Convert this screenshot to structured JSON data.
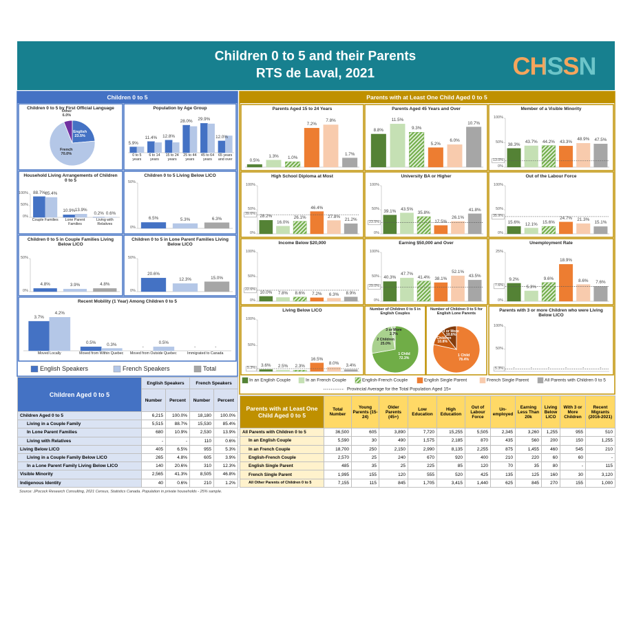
{
  "header": {
    "title_lines": [
      "Children 0 to 5 and their Parents",
      "RTS de Laval, 2021"
    ],
    "logo": "CHSSN"
  },
  "left_panel_title": "Children 0 to 5",
  "right_panel_title": "Parents with at Least One Child Aged 0 to 5",
  "children_legend": [
    {
      "name": "English Speakers",
      "color": "#4472c4"
    },
    {
      "name": "French Speakers",
      "color": "#b4c7e7"
    },
    {
      "name": "Total",
      "color": "#a6a6a6"
    }
  ],
  "parents_legend": {
    "items": [
      {
        "name": "In an English Couple",
        "color": "#548235"
      },
      {
        "name": "In an French Couple",
        "color": "#c5e0b4"
      },
      {
        "name": "English-French Couple",
        "color": "#70ad47",
        "hatch": true
      },
      {
        "name": "English Single Parent",
        "color": "#ed7d31"
      },
      {
        "name": "French Single Parent",
        "color": "#f8cbad"
      },
      {
        "name": "All Parents with Children 0 to 5",
        "color": "#a6a6a6"
      }
    ],
    "reference_line": "Provincial Average for the Total Population Aged 15+"
  },
  "chart_data": [
    {
      "type": "pie",
      "title": "Children 0 to 5 by First Official Language",
      "labels": [
        "English",
        "French",
        "Other"
      ],
      "values": [
        23.5,
        70.0,
        6.0
      ],
      "value_labels": [
        "23.5%",
        "70.0%",
        "6.0%"
      ],
      "colors": [
        "#4472c4",
        "#b4c7e7",
        "#7030a0"
      ]
    },
    {
      "type": "bar",
      "title": "Population by Age Group",
      "categories": [
        "0 to 5 years",
        "6 to 14 years",
        "15 to 24 years",
        "25 to 44 years",
        "45 to 64 years",
        "65 years and over"
      ],
      "series": [
        {
          "values": [
            5.9,
            11.4,
            12.8,
            28.0,
            29.9,
            12.0
          ],
          "value_labels": [
            "5.9%",
            "11.4%",
            "12.8%",
            "28.0%",
            "29.9%",
            "12.0%"
          ]
        },
        {
          "values": [
            6.0,
            10.3,
            10.4,
            26.7,
            29.4,
            17.2
          ]
        }
      ],
      "ylim": [
        0,
        35
      ]
    },
    {
      "type": "bar",
      "title": "Household Living Arrangements of Children 0 to 5",
      "categories": [
        "Couple Families",
        "Lone Parent Families",
        "Living with Relatives"
      ],
      "series": [
        {
          "values": [
            88.7,
            10.9,
            0.2
          ],
          "value_labels": [
            "88.7%",
            "10.9%",
            "0.2%"
          ]
        },
        {
          "values": [
            85.4,
            13.9,
            0.6
          ],
          "value_labels": [
            "85.4%",
            "13.9%",
            "0.6%"
          ]
        }
      ],
      "ylim": [
        0,
        100
      ],
      "yticks": [
        {
          "value": 0,
          "label": "0%"
        },
        {
          "value": 50,
          "label": "50%"
        },
        {
          "value": 100,
          "label": "100%"
        }
      ]
    },
    {
      "type": "bar",
      "title": "Children 0 to 5 Living Below LICO",
      "values": [
        6.5,
        5.3,
        6.3
      ],
      "value_labels": [
        "6.5%",
        "5.3%",
        "6.3%"
      ],
      "ylim": [
        0,
        50
      ],
      "yticks": [
        {
          "value": 0,
          "label": "0%"
        },
        {
          "value": 50,
          "label": "50%"
        }
      ]
    },
    {
      "type": "bar",
      "title": "Children 0 to 5 in Couple Families Living Below LICO",
      "values": [
        4.8,
        3.9,
        4.8
      ],
      "value_labels": [
        "4.8%",
        "3.9%",
        "4.8%"
      ],
      "ylim": [
        0,
        50
      ],
      "yticks": [
        {
          "value": 0,
          "label": "0%"
        },
        {
          "value": 50,
          "label": "50%"
        }
      ]
    },
    {
      "type": "bar",
      "title": "Children 0 to 5 in Lone Parent Families Living Below LICO",
      "values": [
        20.6,
        12.3,
        15.0
      ],
      "value_labels": [
        "20.6%",
        "12.3%",
        "15.0%"
      ],
      "ylim": [
        0,
        50
      ],
      "yticks": [
        {
          "value": 0,
          "label": "0%"
        },
        {
          "value": 50,
          "label": "50%"
        }
      ]
    },
    {
      "type": "bar",
      "title": "Recent Mobility (1 Year) Among Children 0 to 5",
      "categories": [
        "Moved Locally",
        "Moved from Within Quebec",
        "Moved from Outside Quebec",
        "Immigrated to Canada"
      ],
      "series": [
        {
          "values": [
            3.7,
            0.5,
            null,
            null
          ],
          "value_labels": [
            "3.7%",
            "0.5%",
            "-",
            "-"
          ]
        },
        {
          "values": [
            4.2,
            0.3,
            0.5,
            null
          ],
          "value_labels": [
            "4.2%",
            "0.3%",
            "0.5%",
            "-"
          ]
        }
      ],
      "ylim": [
        0,
        5
      ]
    },
    {
      "type": "bar",
      "title": "Parents Aged 15 to 24 Years",
      "values": [
        0.5,
        1.3,
        1.0,
        7.2,
        7.8,
        1.7
      ],
      "value_labels": [
        "0.5%",
        "1.3%",
        "1.0%",
        "7.2%",
        "7.8%",
        "1.7%"
      ],
      "ylim": [
        0,
        9
      ]
    },
    {
      "type": "bar",
      "title": "Parents Aged 45 Years and Over",
      "values": [
        8.8,
        11.5,
        9.3,
        5.2,
        6.0,
        10.7
      ],
      "value_labels": [
        "8.8%",
        "11.5%",
        "9.3%",
        "5.2%",
        "6.0%",
        "10.7%"
      ],
      "ylim": [
        0,
        13
      ]
    },
    {
      "type": "bar",
      "title": "Member of a Visible Minority",
      "values": [
        38.3,
        43.7,
        44.2,
        43.3,
        48.9,
        47.5
      ],
      "value_labels": [
        "38.3%",
        "43.7%",
        "44.2%",
        "43.3%",
        "48.9%",
        "47.5%"
      ],
      "ylim": [
        0,
        100
      ],
      "yticks": [
        {
          "value": 0,
          "label": "0%"
        },
        {
          "value": 50,
          "label": "50%"
        },
        {
          "value": 100,
          "label": "100%"
        }
      ],
      "reference": {
        "value": 13.0,
        "label": "13.0%"
      }
    },
    {
      "type": "bar",
      "title": "High School Diploma at Most",
      "values": [
        28.2,
        16.0,
        26.1,
        46.4,
        27.8,
        21.2
      ],
      "value_labels": [
        "28.2%",
        "16.0%",
        "26.1%",
        "46.4%",
        "27.8%",
        "21.2%"
      ],
      "ylim": [
        0,
        100
      ],
      "yticks": [
        {
          "value": 0,
          "label": "0%"
        },
        {
          "value": 50,
          "label": "50%"
        },
        {
          "value": 100,
          "label": "100%"
        }
      ],
      "reference": {
        "value": 39.6,
        "label": "39.6%"
      }
    },
    {
      "type": "bar",
      "title": "University BA or Higher",
      "values": [
        39.1,
        43.5,
        35.8,
        17.5,
        26.1,
        41.8
      ],
      "value_labels": [
        "39.1%",
        "43.5%",
        "35.8%",
        "17.5%",
        "26.1%",
        "41.8%"
      ],
      "ylim": [
        0,
        100
      ],
      "yticks": [
        {
          "value": 0,
          "label": "0%"
        },
        {
          "value": 50,
          "label": "50%"
        },
        {
          "value": 100,
          "label": "100%"
        }
      ],
      "reference": {
        "value": 23.5,
        "label": "23.5%"
      }
    },
    {
      "type": "bar",
      "title": "Out of the Labour Force",
      "values": [
        15.6,
        12.1,
        15.6,
        24.7,
        21.3,
        15.1
      ],
      "value_labels": [
        "15.6%",
        "12.1%",
        "15.6%",
        "24.7%",
        "21.3%",
        "15.1%"
      ],
      "ylim": [
        0,
        100
      ],
      "yticks": [
        {
          "value": 0,
          "label": "0%"
        },
        {
          "value": 50,
          "label": "50%"
        },
        {
          "value": 100,
          "label": "100%"
        }
      ],
      "reference": {
        "value": 35.9,
        "label": "35.9%"
      }
    },
    {
      "type": "bar",
      "title": "Income Below $20,000",
      "values": [
        10.0,
        7.8,
        8.6,
        7.2,
        6.3,
        8.9
      ],
      "value_labels": [
        "10.0%",
        "7.8%",
        "8.6%",
        "7.2%",
        "6.3%",
        "8.9%"
      ],
      "ylim": [
        0,
        100
      ],
      "yticks": [
        {
          "value": 0,
          "label": "0%"
        },
        {
          "value": 50,
          "label": "50%"
        },
        {
          "value": 100,
          "label": "100%"
        }
      ],
      "reference": {
        "value": 22.6,
        "label": "22.6%"
      }
    },
    {
      "type": "bar",
      "title": "Earning $50,000 and Over",
      "values": [
        40.3,
        47.7,
        41.4,
        38.1,
        52.1,
        43.5
      ],
      "value_labels": [
        "40.3%",
        "47.7%",
        "41.4%",
        "38.1%",
        "52.1%",
        "43.5%"
      ],
      "ylim": [
        0,
        100
      ],
      "yticks": [
        {
          "value": 0,
          "label": "0%"
        },
        {
          "value": 50,
          "label": "50%"
        },
        {
          "value": 100,
          "label": "100%"
        }
      ],
      "reference": {
        "value": 29.0,
        "label": "29.0%"
      }
    },
    {
      "type": "bar",
      "title": "Unemployment Rate",
      "values": [
        9.2,
        5.3,
        9.6,
        18.9,
        8.6,
        7.6
      ],
      "value_labels": [
        "9.2%",
        "5.3%",
        "9.6%",
        "18.9%",
        "8.6%",
        "7.6%"
      ],
      "ylim": [
        0,
        25
      ],
      "yticks": [
        {
          "value": 0,
          "label": "0%"
        },
        {
          "value": 25,
          "label": "25%"
        }
      ],
      "reference": {
        "value": 7.6,
        "label": "7.6%"
      }
    },
    {
      "type": "bar",
      "title": "Living Below LICO",
      "values": [
        3.6,
        2.5,
        2.3,
        16.5,
        8.0,
        3.4
      ],
      "value_labels": [
        "3.6%",
        "2.5%",
        "2.3%",
        "16.5%",
        "8.0%",
        "3.4%"
      ],
      "ylim": [
        0,
        100
      ],
      "yticks": [
        {
          "value": 0,
          "label": "0%"
        },
        {
          "value": 50,
          "label": "50%"
        },
        {
          "value": 100,
          "label": "100%"
        }
      ],
      "reference": {
        "value": 5.3,
        "label": "5.3%"
      }
    },
    {
      "type": "pie",
      "title": "Number of Children 0 to 5 in English Couples",
      "labels": [
        "1 Child",
        "2 Children",
        "3 or More"
      ],
      "values": [
        72.3,
        25.0,
        2.7
      ],
      "value_labels": [
        "72.3%",
        "25.0%",
        "2.7%"
      ],
      "colors": [
        "#70ad47",
        "#a9d18e",
        "#c5e0b4"
      ]
    },
    {
      "type": "pie",
      "title": "Number of Children 0 to 5 for English Lone Parents",
      "labels": [
        "1 Child",
        "2 Children",
        "3 or More"
      ],
      "values": [
        78.4,
        10.8,
        10.8
      ],
      "value_labels": [
        "78.4%",
        "10.8%",
        "10.8%"
      ],
      "colors": [
        "#ed7d31",
        "#c55a11",
        "#843c0c"
      ]
    },
    {
      "type": "bar",
      "title": "Parents with 3 or more Children who were Living Below LICO",
      "values": [
        null,
        null,
        null,
        null,
        null,
        null
      ],
      "value_labels": [
        "-",
        "-",
        "-",
        "-",
        "-",
        "-"
      ],
      "ylim": [
        0,
        100
      ],
      "yticks": [
        {
          "value": 0,
          "label": "0%"
        },
        {
          "value": 50,
          "label": "50%"
        },
        {
          "value": 100,
          "label": "100%"
        }
      ],
      "reference": {
        "value": 5.3,
        "label": "5.3%"
      }
    }
  ],
  "children_table": {
    "title": "Children Aged 0 to 5",
    "groups": [
      "English Speakers",
      "French Speakers"
    ],
    "columns": [
      "Number",
      "Percent",
      "Number",
      "Percent"
    ],
    "rows": [
      [
        "Children Aged 0 to 5",
        "6,215",
        "100.0%",
        "18,180",
        "100.0%"
      ],
      [
        "Living in a Couple Family",
        "5,515",
        "88.7%",
        "15,530",
        "85.4%"
      ],
      [
        "In Lone Parent Families",
        "680",
        "10.9%",
        "2,530",
        "13.9%"
      ],
      [
        "Living with Relatives",
        "-",
        "-",
        "110",
        "0.6%"
      ],
      [
        "Living Below LICO",
        "405",
        "6.5%",
        "955",
        "5.3%"
      ],
      [
        "Living in a Couple Family Below LICO",
        "265",
        "4.8%",
        "605",
        "3.9%"
      ],
      [
        "In a Lone Parent Family Living Below LICO",
        "140",
        "20.6%",
        "310",
        "12.3%"
      ],
      [
        "Visible Minority",
        "2,565",
        "41.3%",
        "8,505",
        "46.8%"
      ],
      [
        "Indigenous Identity",
        "40",
        "0.6%",
        "210",
        "1.2%"
      ]
    ]
  },
  "parents_table": {
    "title": "Parents with at Least One Child Aged 0 to 5",
    "columns": [
      "Total Number",
      "Young Parents (15-24)",
      "Older Parents (45+)",
      "Low Education",
      "High Education",
      "Out of Labour Force",
      "Un-employed",
      "Earning Less Than 20k",
      "Living Below LICO",
      "With 3 or More Children",
      "Recent Migrants (2016-2021)"
    ],
    "rows": [
      [
        "All Parents with Children 0 to 5",
        "36,500",
        "605",
        "3,890",
        "7,720",
        "15,255",
        "5,505",
        "2,345",
        "3,260",
        "1,255",
        "955",
        "510"
      ],
      [
        "In an English Couple",
        "5,590",
        "30",
        "490",
        "1,575",
        "2,185",
        "870",
        "435",
        "560",
        "200",
        "150",
        "1,255"
      ],
      [
        "In an French Couple",
        "18,700",
        "250",
        "2,150",
        "2,990",
        "8,135",
        "2,255",
        "875",
        "1,455",
        "460",
        "545",
        "210"
      ],
      [
        "English-French Couple",
        "2,570",
        "25",
        "240",
        "670",
        "920",
        "400",
        "210",
        "220",
        "60",
        "60",
        "-"
      ],
      [
        "English Single Parent",
        "485",
        "35",
        "25",
        "225",
        "85",
        "120",
        "70",
        "35",
        "80",
        "-",
        "115"
      ],
      [
        "French Single Parent",
        "1,995",
        "155",
        "120",
        "555",
        "520",
        "425",
        "135",
        "125",
        "160",
        "30",
        "3,120"
      ],
      [
        "All Other Parents of Children 0 to 5",
        "7,155",
        "115",
        "845",
        "1,705",
        "3,415",
        "1,440",
        "625",
        "845",
        "270",
        "155",
        "1,000"
      ]
    ]
  },
  "source": "Source: JPocock Research Consulting, 2021 Census, Statistics Canada. Population in private households - 25% sample."
}
